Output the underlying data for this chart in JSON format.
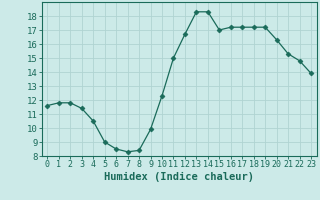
{
  "x": [
    0,
    1,
    2,
    3,
    4,
    5,
    6,
    7,
    8,
    9,
    10,
    11,
    12,
    13,
    14,
    15,
    16,
    17,
    18,
    19,
    20,
    21,
    22,
    23
  ],
  "y": [
    11.6,
    11.8,
    11.8,
    11.4,
    10.5,
    9.0,
    8.5,
    8.3,
    8.4,
    9.9,
    12.3,
    15.0,
    16.7,
    18.3,
    18.3,
    17.0,
    17.2,
    17.2,
    17.2,
    17.2,
    16.3,
    15.3,
    14.8,
    13.9
  ],
  "line_color": "#1a6b5a",
  "marker": "D",
  "marker_size": 2.5,
  "bg_color": "#cceae8",
  "grid_color": "#b0d4d2",
  "xlabel": "Humidex (Indice chaleur)",
  "ylim": [
    8,
    19
  ],
  "xlim": [
    -0.5,
    23.5
  ],
  "yticks": [
    8,
    9,
    10,
    11,
    12,
    13,
    14,
    15,
    16,
    17,
    18
  ],
  "xtick_labels": [
    "0",
    "1",
    "2",
    "3",
    "4",
    "5",
    "6",
    "7",
    "8",
    "9",
    "10",
    "11",
    "12",
    "13",
    "14",
    "15",
    "16",
    "17",
    "18",
    "19",
    "20",
    "21",
    "22",
    "23"
  ],
  "tick_color": "#1a6b5a",
  "label_color": "#1a6b5a",
  "spine_color": "#1a6b5a",
  "xlabel_fontsize": 7.5,
  "ytick_fontsize": 6.5,
  "xtick_fontsize": 6.0
}
